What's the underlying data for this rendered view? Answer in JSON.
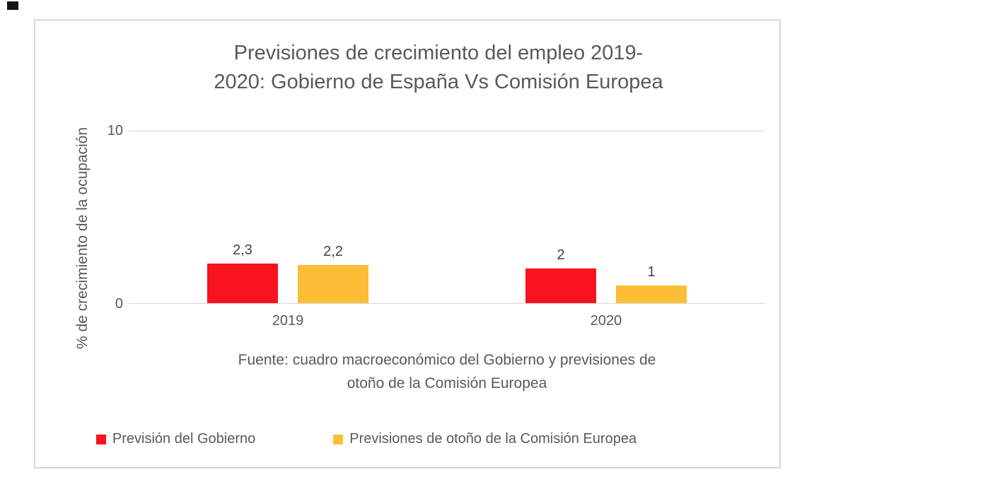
{
  "chart_data": {
    "type": "bar",
    "title": "Previsiones de crecimiento del empleo 2019-2020: Gobierno de España Vs Comisión Europea",
    "title_lines": [
      "Previsiones de crecimiento del empleo 2019-",
      "2020: Gobierno de España Vs Comisión Europea"
    ],
    "ylabel": "% de crecimiento de la ocupación",
    "xlabel": "",
    "categories": [
      "2019",
      "2020"
    ],
    "series": [
      {
        "name": "Previsión del Gobierno",
        "color": "#f8131f",
        "values": [
          2.3,
          2
        ],
        "labels": [
          "2,3",
          "2"
        ]
      },
      {
        "name": "Previsiones de otoño de la Comisión Europea",
        "color": "#fcbe37",
        "values": [
          2.2,
          1
        ],
        "labels": [
          "2,2",
          "1"
        ]
      }
    ],
    "ylim": [
      0,
      10
    ],
    "yticks": [
      0,
      10
    ],
    "grid": "horizontal-top-only",
    "legend_position": "bottom",
    "source_lines": [
      "Fuente: cuadro macroeconómico del Gobierno y previsiones de",
      "otoño de la Comisión Europea"
    ]
  }
}
